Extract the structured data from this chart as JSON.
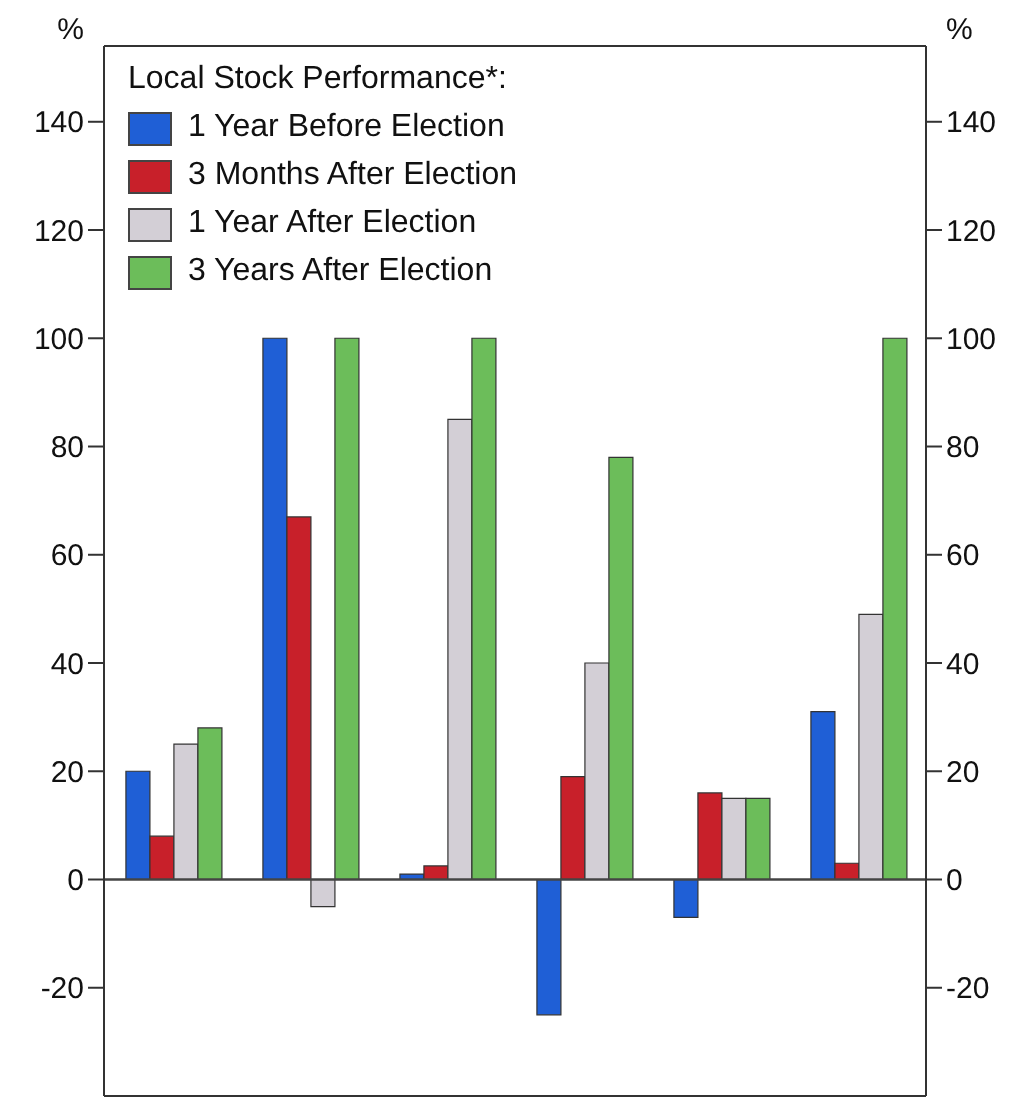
{
  "chart_data": {
    "type": "bar",
    "ylabel": "%",
    "y2label": "%",
    "legend_title": "Local Stock Performance*:",
    "legend": "top left",
    "categories": [
      null,
      null,
      null,
      null,
      null,
      null
    ],
    "series": [
      {
        "name": "1 Year Before Election",
        "color": "#1f5fd6",
        "values": [
          20,
          100,
          1,
          -25,
          -7,
          31
        ]
      },
      {
        "name": "3 Months After Election",
        "color": "#c8202a",
        "values": [
          8,
          67,
          2.5,
          19,
          16,
          3
        ]
      },
      {
        "name": "1 Year After Election",
        "color": "#d3cfd6",
        "values": [
          25,
          -5,
          85,
          40,
          15,
          49
        ]
      },
      {
        "name": "3 Years After Election",
        "color": "#6cbd5a",
        "values": [
          28,
          100,
          100,
          78,
          15,
          100
        ]
      }
    ],
    "ylim": [
      -40,
      154
    ],
    "yticks": [
      -20,
      0,
      20,
      40,
      60,
      80,
      100,
      120,
      140
    ],
    "y2lim": [
      -40,
      154
    ],
    "y2ticks": [
      -20,
      0,
      20,
      40,
      60,
      80,
      100,
      120,
      140
    ],
    "ref_lines": [
      {
        "axis": "y",
        "value": 0
      }
    ]
  }
}
